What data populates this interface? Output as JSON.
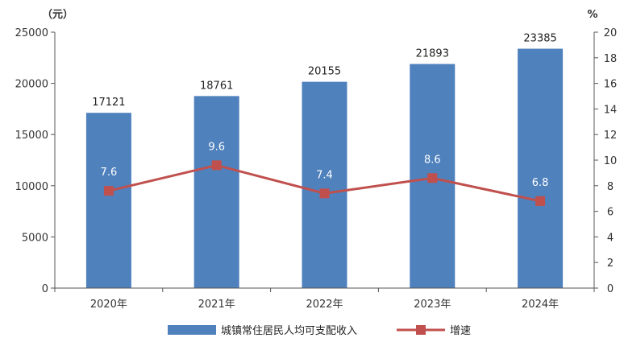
{
  "chart_data": {
    "type": "bar",
    "categories": [
      "2020年",
      "2021年",
      "2022年",
      "2023年",
      "2024年"
    ],
    "series": [
      {
        "name": "城镇常住居民人均可支配收入",
        "type": "bar",
        "axis": "left",
        "color": "#4f81bd",
        "values": [
          17121,
          18761,
          20155,
          21893,
          23385
        ],
        "labels": [
          "17121",
          "18761",
          "20155",
          "21893",
          "23385"
        ]
      },
      {
        "name": "增速",
        "type": "line",
        "axis": "right",
        "color": "#c0504d",
        "values": [
          7.6,
          9.6,
          7.4,
          8.6,
          6.8
        ],
        "labels": [
          "7.6",
          "9.6",
          "7.4",
          "8.6",
          "6.8"
        ]
      }
    ],
    "y_left": {
      "unit": "（元）",
      "ylim": [
        0,
        25000
      ],
      "ticks": [
        "0",
        "5000",
        "10000",
        "15000",
        "20000",
        "25000"
      ]
    },
    "y_right": {
      "unit": "%",
      "ylim": [
        0,
        20
      ],
      "ticks": [
        "0",
        "2",
        "4",
        "6",
        "8",
        "10",
        "12",
        "14",
        "16",
        "18",
        "20"
      ]
    },
    "grid": false,
    "legend": "bottom"
  }
}
